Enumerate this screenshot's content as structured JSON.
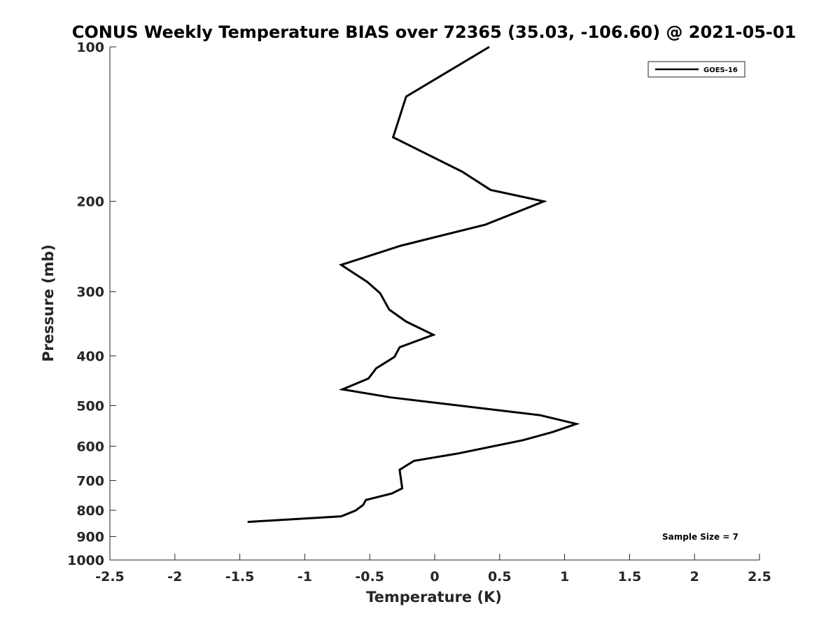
{
  "chart_data": {
    "type": "line",
    "title": "CONUS Weekly Temperature BIAS over 72365 (35.03, -106.60) @ 2021-05-01",
    "xlabel": "Temperature (K)",
    "ylabel": "Pressure (mb)",
    "xlim": [
      -2.5,
      2.5
    ],
    "ylim": [
      100,
      1000
    ],
    "yscale": "log",
    "y_reversed": true,
    "grid": false,
    "legend_position": "top-right",
    "x_ticks": [
      -2.5,
      -2,
      -1.5,
      -1,
      -0.5,
      0,
      0.5,
      1,
      1.5,
      2,
      2.5
    ],
    "x_tick_labels": [
      "-2.5",
      "-2",
      "-1.5",
      "-1",
      "-0.5",
      "0",
      "0.5",
      "1",
      "1.5",
      "2",
      "2.5"
    ],
    "y_ticks": [
      100,
      200,
      300,
      400,
      500,
      600,
      700,
      800,
      900,
      1000
    ],
    "y_tick_labels": [
      "100",
      "200",
      "300",
      "400",
      "500",
      "600",
      "700",
      "800",
      "900",
      "1000"
    ],
    "series": [
      {
        "name": "GOES-16",
        "color": "#000000",
        "points": [
          {
            "x": 0.42,
            "y": 100
          },
          {
            "x": -0.22,
            "y": 125
          },
          {
            "x": -0.32,
            "y": 150
          },
          {
            "x": 0.21,
            "y": 175
          },
          {
            "x": 0.43,
            "y": 190
          },
          {
            "x": 0.84,
            "y": 200
          },
          {
            "x": 0.39,
            "y": 222
          },
          {
            "x": -0.26,
            "y": 244
          },
          {
            "x": -0.72,
            "y": 266
          },
          {
            "x": -0.52,
            "y": 287
          },
          {
            "x": -0.42,
            "y": 302
          },
          {
            "x": -0.35,
            "y": 325
          },
          {
            "x": -0.22,
            "y": 343
          },
          {
            "x": -0.01,
            "y": 364
          },
          {
            "x": -0.27,
            "y": 385
          },
          {
            "x": -0.31,
            "y": 402
          },
          {
            "x": -0.45,
            "y": 423
          },
          {
            "x": -0.51,
            "y": 443
          },
          {
            "x": -0.71,
            "y": 465
          },
          {
            "x": -0.34,
            "y": 482
          },
          {
            "x": 0.81,
            "y": 522
          },
          {
            "x": 1.09,
            "y": 543
          },
          {
            "x": 0.91,
            "y": 563
          },
          {
            "x": 0.68,
            "y": 584
          },
          {
            "x": 0.18,
            "y": 620
          },
          {
            "x": -0.16,
            "y": 641
          },
          {
            "x": -0.27,
            "y": 667
          },
          {
            "x": -0.25,
            "y": 725
          },
          {
            "x": -0.33,
            "y": 742
          },
          {
            "x": -0.53,
            "y": 764
          },
          {
            "x": -0.55,
            "y": 781
          },
          {
            "x": -0.61,
            "y": 801
          },
          {
            "x": -0.72,
            "y": 822
          },
          {
            "x": -1.44,
            "y": 843
          }
        ]
      }
    ],
    "annotation": "Sample Size = 7"
  }
}
